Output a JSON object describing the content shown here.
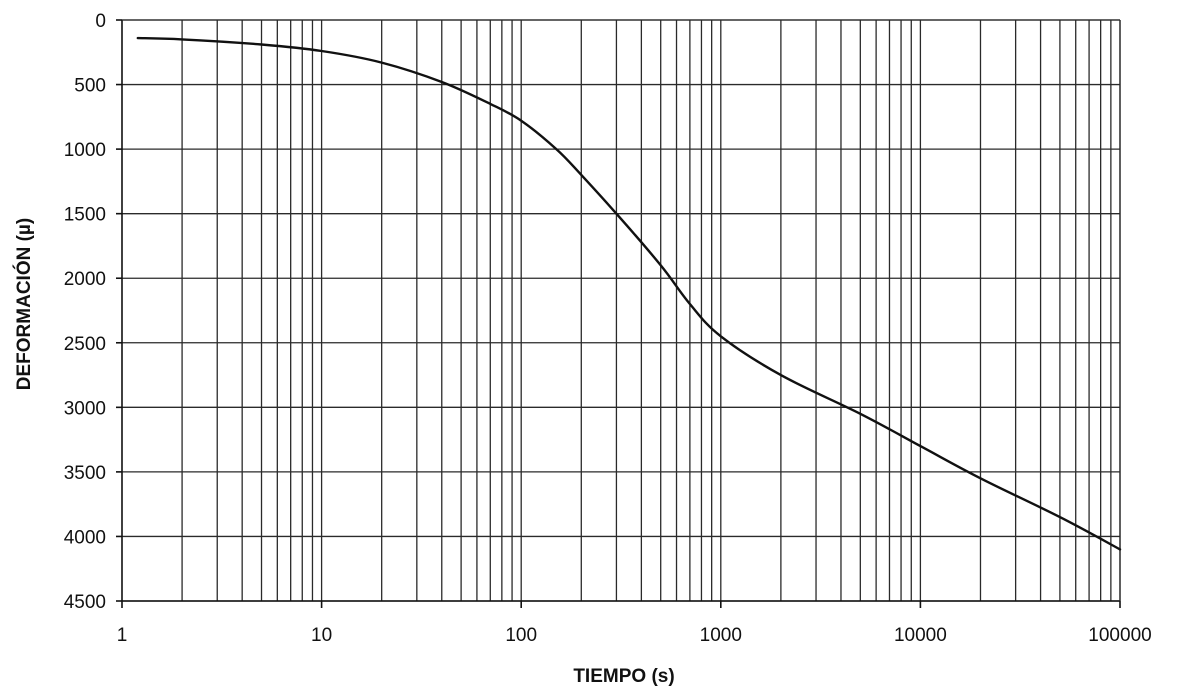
{
  "chart_data": {
    "type": "line",
    "title": "",
    "xlabel": "TIEMPO (s)",
    "ylabel": "DEFORMACIÓN (µ)",
    "x_scale": "log",
    "xlim": [
      1,
      100000
    ],
    "ylim": [
      0,
      4500
    ],
    "y_inverted": true,
    "grid": true,
    "legend": "none",
    "x_ticks": [
      "1",
      "10",
      "100",
      "1000",
      "10000",
      "100000"
    ],
    "y_ticks": [
      "0",
      "500",
      "1000",
      "1500",
      "2000",
      "2500",
      "3000",
      "3500",
      "4000",
      "4500"
    ],
    "series": [
      {
        "color": "#111111",
        "x": [
          1.2,
          2,
          5,
          10,
          20,
          40,
          70,
          100,
          150,
          200,
          300,
          500,
          700,
          1000,
          2000,
          5000,
          10000,
          20000,
          50000,
          100000
        ],
        "y": [
          140,
          150,
          190,
          240,
          330,
          480,
          650,
          780,
          1000,
          1200,
          1500,
          1900,
          2200,
          2450,
          2750,
          3050,
          3300,
          3550,
          3850,
          4100
        ]
      }
    ]
  }
}
